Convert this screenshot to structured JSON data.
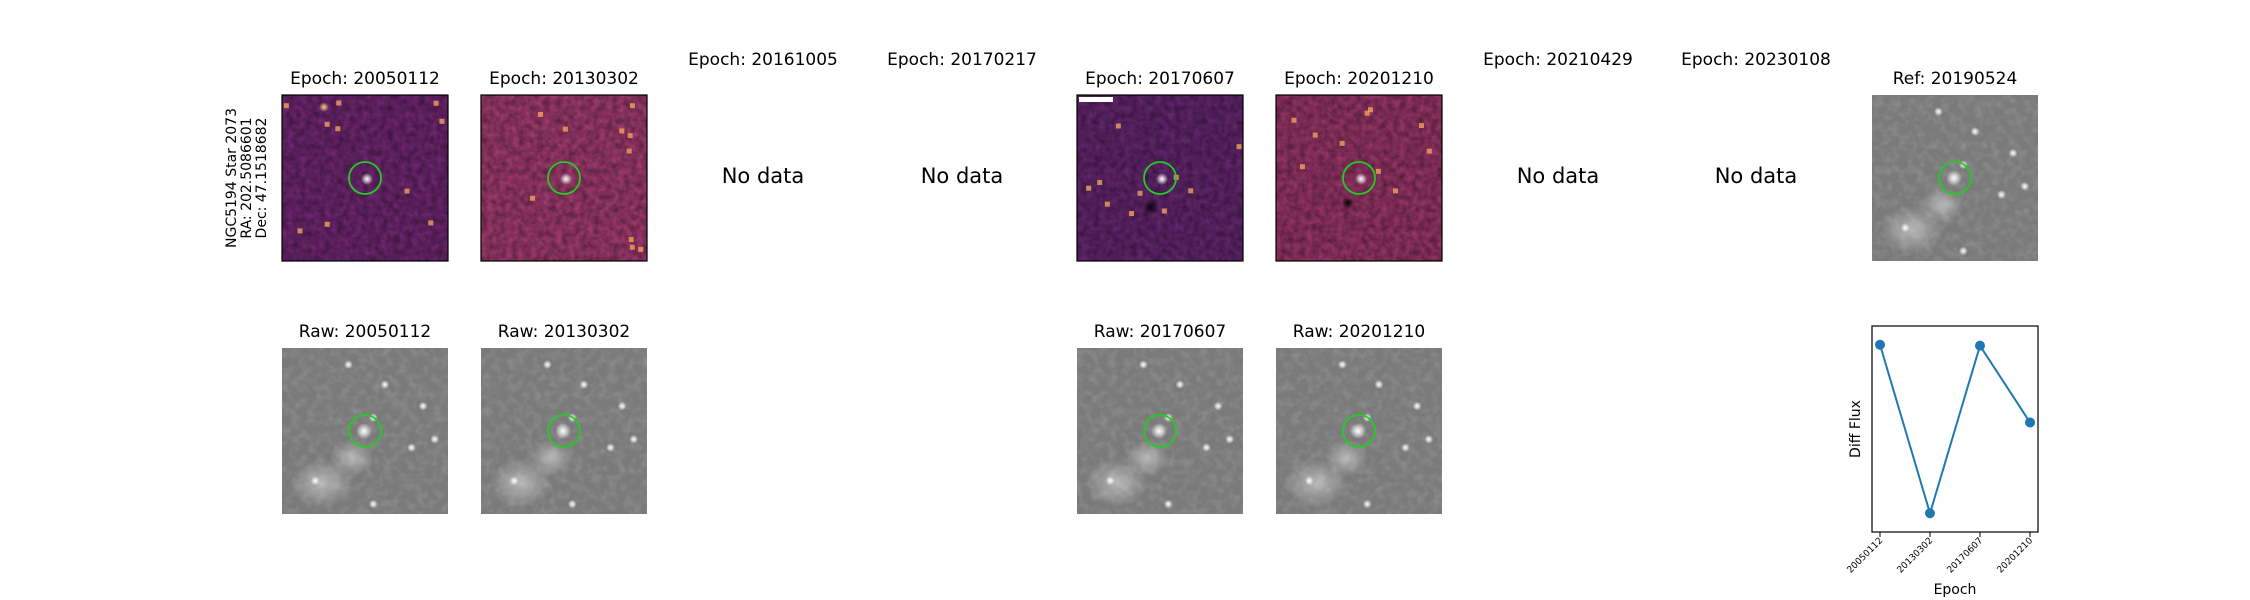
{
  "star_label": {
    "line1": "NGC5194 Star 2073",
    "line2": "RA: 202.5086601",
    "line3": "Dec: 47.1518682"
  },
  "no_data_text": "No data",
  "epochs": [
    {
      "title": "Epoch: 20050112",
      "raw_title": "Raw: 20050112",
      "has_data": true
    },
    {
      "title": "Epoch: 20130302",
      "raw_title": "Raw: 20130302",
      "has_data": true
    },
    {
      "title": "Epoch: 20161005",
      "has_data": false
    },
    {
      "title": "Epoch: 20170217",
      "has_data": false
    },
    {
      "title": "Epoch: 20170607",
      "raw_title": "Raw: 20170607",
      "has_data": true
    },
    {
      "title": "Epoch: 20201210",
      "raw_title": "Raw: 20201210",
      "has_data": true
    },
    {
      "title": "Epoch: 20210429",
      "has_data": false
    },
    {
      "title": "Epoch: 20230108",
      "has_data": false
    }
  ],
  "reference": {
    "title": "Ref: 20190524"
  },
  "colors": {
    "circle": "#22cc22",
    "line": "#1f77b4",
    "diff_colormap": "magma",
    "raw_colormap": "gray"
  },
  "chart_data": {
    "type": "line",
    "categories": [
      "20050112",
      "20130302",
      "20170607",
      "20201210"
    ],
    "values": [
      0.95,
      -0.85,
      0.94,
      0.12
    ],
    "ylim": [
      -1.05,
      1.15
    ],
    "xlabel": "Epoch",
    "ylabel": "Diff Flux",
    "grid": false,
    "yticks_visible": false
  }
}
